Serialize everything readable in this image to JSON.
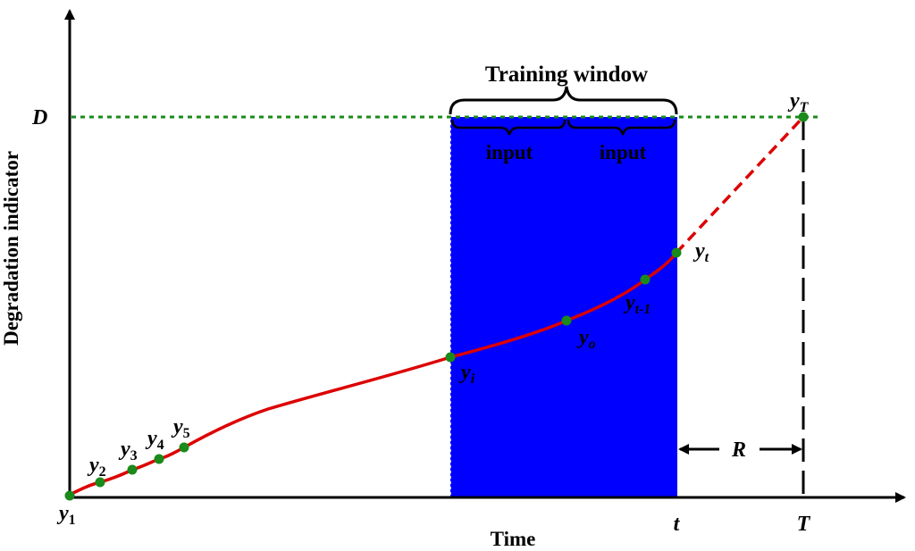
{
  "diagram": {
    "y_axis_label": "Degradation indicator",
    "x_axis_label": "Time",
    "threshold_label": "D",
    "window_label": "Training window",
    "input_labels": [
      "input",
      "input"
    ],
    "rul_label": "R",
    "tick_t": "t",
    "tick_T": "T",
    "point_labels": {
      "y1": {
        "base": "y",
        "sub": "1"
      },
      "y2": {
        "base": "y",
        "sub": "2"
      },
      "y3": {
        "base": "y",
        "sub": "3"
      },
      "y4": {
        "base": "y",
        "sub": "4"
      },
      "y5": {
        "base": "y",
        "sub": "5"
      },
      "yi": {
        "base": "y",
        "sub": "i"
      },
      "yo": {
        "base": "y",
        "sub": "o"
      },
      "yt1": {
        "base": "y",
        "sub": "t-1"
      },
      "yt": {
        "base": "y",
        "sub": "t"
      },
      "yT": {
        "base": "y",
        "sub": "T"
      }
    },
    "colors": {
      "curve": "#dd0000",
      "points": "#1a8a1a",
      "threshold": "#1a8a1a",
      "window": "#0000ff",
      "axes": "#000000"
    }
  }
}
